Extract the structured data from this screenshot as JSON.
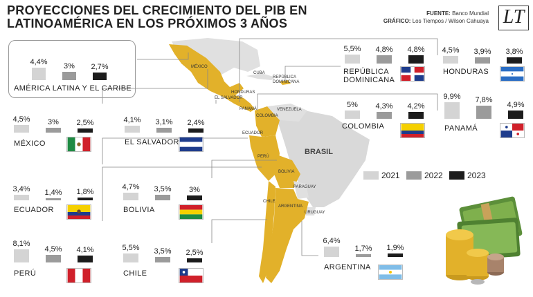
{
  "title": "PROYECCIONES DEL CRECIMIENTO DEL PIB EN LATINOAMÉRICA EN LOS PRÓXIMOS 3 AÑOS",
  "credits": {
    "source_label": "FUENTE:",
    "source_value": "Banco Mundial",
    "graphic_label": "GRÁFICO:",
    "graphic_value": "Los Tiempos / Wilson Cahuaya"
  },
  "logo_text": "LT",
  "map_labels": {
    "mexico": "MÉXICO",
    "cuba": "CUBA",
    "rep_dom": "REPÚBLICA DOMINICANA",
    "honduras": "HONDURAS",
    "el_salvador": "EL SALVADOR",
    "panama": "PANAMÁ",
    "venezuela": "VENEZUELA",
    "colombia": "COLOMBIA",
    "ecuador": "ECUADOR",
    "peru": "PERÚ",
    "brasil": "BRASIL",
    "bolivia": "BOLIVIA",
    "paraguay": "PARAGUAY",
    "chile": "CHILE",
    "argentina": "ARGENTINA",
    "uruguay": "URUGUAY"
  },
  "chart_data": {
    "type": "bar",
    "categories": [
      "2021",
      "2022",
      "2023"
    ],
    "unit": "%",
    "legend_placement": "right-center",
    "series_colors": {
      "2021": "#d4d4d4",
      "2022": "#9b9b9b",
      "2023": "#1c1c1c"
    },
    "series": [
      {
        "name": "AMÉRICA LATINA Y EL CARIBE",
        "values": [
          4.4,
          3.0,
          2.7
        ],
        "labels": [
          "4,4",
          "3",
          "2,7"
        ]
      },
      {
        "name": "MÉXICO",
        "values": [
          4.5,
          3.0,
          2.5
        ],
        "labels": [
          "4,5",
          "3",
          "2,5"
        ]
      },
      {
        "name": "EL SALVADOR",
        "values": [
          4.1,
          3.1,
          2.4
        ],
        "labels": [
          "4,1",
          "3,1",
          "2,4"
        ]
      },
      {
        "name": "ECUADOR",
        "values": [
          3.4,
          1.4,
          1.8
        ],
        "labels": [
          "3,4",
          "1,4",
          "1,8"
        ]
      },
      {
        "name": "BOLIVIA",
        "values": [
          4.7,
          3.5,
          3.0
        ],
        "labels": [
          "4,7",
          "3,5",
          "3"
        ]
      },
      {
        "name": "PERÚ",
        "values": [
          8.1,
          4.5,
          4.1
        ],
        "labels": [
          "8,1",
          "4,5",
          "4,1"
        ]
      },
      {
        "name": "CHILE",
        "values": [
          5.5,
          3.5,
          2.5
        ],
        "labels": [
          "5,5",
          "3,5",
          "2,5"
        ]
      },
      {
        "name": "REPÚBLICA DOMINICANA",
        "values": [
          5.5,
          4.8,
          4.8
        ],
        "labels": [
          "5,5",
          "4,8",
          "4,8"
        ]
      },
      {
        "name": "HONDURAS",
        "values": [
          4.5,
          3.9,
          3.8
        ],
        "labels": [
          "4,5",
          "3,9",
          "3,8"
        ]
      },
      {
        "name": "COLOMBIA",
        "values": [
          5.0,
          4.3,
          4.2
        ],
        "labels": [
          "5",
          "4,3",
          "4,2"
        ]
      },
      {
        "name": "PANAMÁ",
        "values": [
          9.9,
          7.8,
          4.9
        ],
        "labels": [
          "9,9",
          "7,8",
          "4,9"
        ]
      },
      {
        "name": "ARGENTINA",
        "values": [
          6.4,
          1.7,
          1.9
        ],
        "labels": [
          "6,4",
          "1,7",
          "1,9"
        ]
      }
    ]
  }
}
